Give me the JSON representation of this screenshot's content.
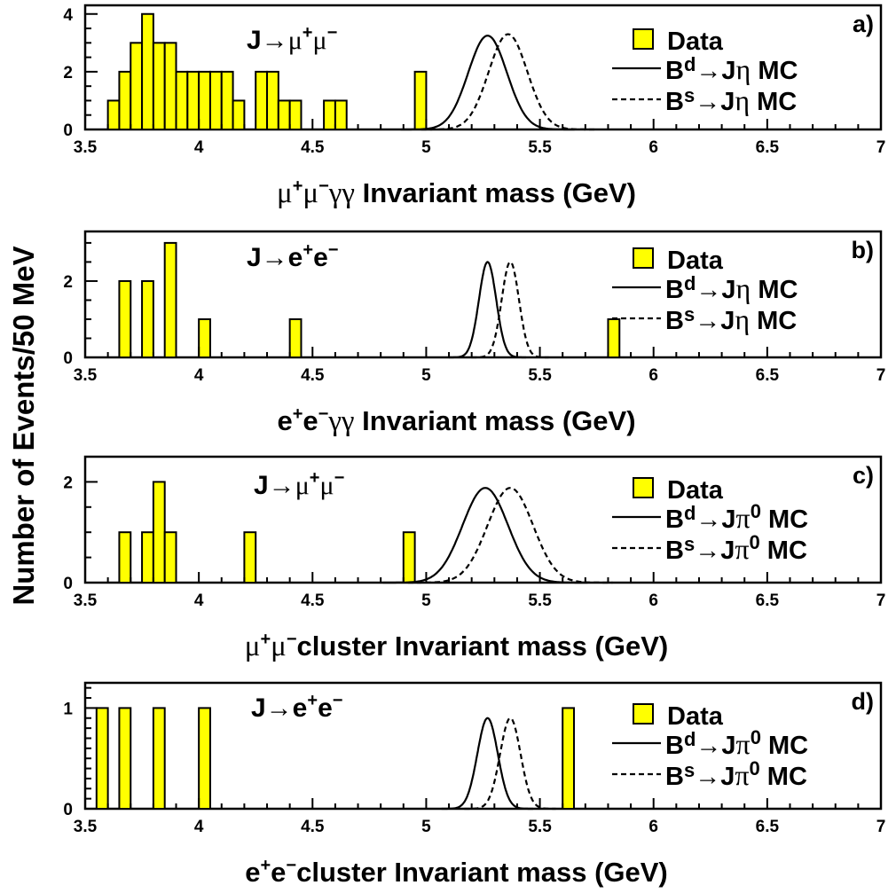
{
  "figure": {
    "ylabel": "Number of Events/50 MeV"
  },
  "chart_data": [
    {
      "type": "bar",
      "panel": "a)",
      "xlabel": "μ⁺μ⁻γγ Invariant mass (GeV)",
      "xlim": [
        3.5,
        7
      ],
      "ylim": [
        0,
        4.3
      ],
      "xticks": [
        "3.5",
        "4",
        "4.5",
        "5",
        "5.5",
        "6",
        "6.5",
        "7"
      ],
      "yticks": [
        "0",
        "2",
        "4"
      ],
      "channel_label": "J→μ⁺μ⁻",
      "bin_width": 0.05,
      "series": [
        {
          "name": "Data",
          "x": [
            3.6,
            3.65,
            3.7,
            3.75,
            3.8,
            3.85,
            3.9,
            3.95,
            4.0,
            4.05,
            4.1,
            4.15,
            4.25,
            4.3,
            4.35,
            4.4,
            4.55,
            4.6,
            4.95
          ],
          "values": [
            1,
            2,
            3,
            4,
            3,
            3,
            2,
            2,
            2,
            2,
            2,
            1,
            2,
            2,
            1,
            1,
            1,
            1,
            2
          ],
          "color": "#ffff00"
        },
        {
          "name": "B_d→Jη MC",
          "type": "gaussian",
          "mean": 5.27,
          "sigma": 0.085,
          "peak": 3.25
        },
        {
          "name": "B_s→Jη MC",
          "type": "gaussian",
          "mean": 5.36,
          "sigma": 0.085,
          "peak": 3.3
        }
      ],
      "legend": [
        "Data",
        "Bd→Jη MC",
        "Bs→Jη MC"
      ],
      "legend_position": "top-right"
    },
    {
      "type": "bar",
      "panel": "b)",
      "xlabel": "e⁺e⁻γγ Invariant mass (GeV)",
      "xlim": [
        3.5,
        7
      ],
      "ylim": [
        0,
        3.3
      ],
      "xticks": [
        "3.5",
        "4",
        "4.5",
        "5",
        "5.5",
        "6",
        "6.5",
        "7"
      ],
      "yticks": [
        "0",
        "2"
      ],
      "channel_label": "J→e⁺e⁻",
      "bin_width": 0.05,
      "series": [
        {
          "name": "Data",
          "x": [
            3.65,
            3.75,
            3.85,
            4.0,
            4.4,
            5.8
          ],
          "values": [
            2,
            2,
            3,
            1,
            1,
            1
          ],
          "color": "#ffff00"
        },
        {
          "name": "B_d→Jη MC",
          "type": "gaussian",
          "mean": 5.27,
          "sigma": 0.038,
          "peak": 2.5
        },
        {
          "name": "B_s→Jη MC",
          "type": "gaussian",
          "mean": 5.37,
          "sigma": 0.038,
          "peak": 2.5
        }
      ],
      "legend": [
        "Data",
        "Bd→Jη MC",
        "Bs→Jη MC"
      ],
      "legend_position": "top-right"
    },
    {
      "type": "bar",
      "panel": "c)",
      "xlabel": "μ⁺μ⁻cluster Invariant mass (GeV)",
      "xlim": [
        3.5,
        7
      ],
      "ylim": [
        0,
        2.5
      ],
      "xticks": [
        "3.5",
        "4",
        "4.5",
        "5",
        "5.5",
        "6",
        "6.5",
        "7"
      ],
      "yticks": [
        "0",
        "2"
      ],
      "channel_label": "J→μ⁺μ⁻",
      "bin_width": 0.05,
      "series": [
        {
          "name": "Data",
          "x": [
            3.65,
            3.75,
            3.8,
            3.85,
            4.2,
            4.9
          ],
          "values": [
            1,
            1,
            2,
            1,
            1,
            1
          ],
          "color": "#ffff00"
        },
        {
          "name": "B_d→Jπ⁰ MC",
          "type": "gaussian",
          "mean": 5.26,
          "sigma": 0.1,
          "peak": 1.88
        },
        {
          "name": "B_s→Jπ⁰ MC",
          "type": "gaussian",
          "mean": 5.37,
          "sigma": 0.1,
          "peak": 1.88
        }
      ],
      "legend": [
        "Data",
        "Bd→Jπ0 MC",
        "Bs→Jπ0 MC"
      ],
      "legend_position": "top-right"
    },
    {
      "type": "bar",
      "panel": "d)",
      "xlabel": "e⁺e⁻cluster Invariant mass (GeV)",
      "xlim": [
        3.5,
        7
      ],
      "ylim": [
        0,
        1.25
      ],
      "xticks": [
        "3.5",
        "4",
        "4.5",
        "5",
        "5.5",
        "6",
        "6.5",
        "7"
      ],
      "yticks": [
        "0",
        "1"
      ],
      "channel_label": "J→e⁺e⁻",
      "bin_width": 0.05,
      "series": [
        {
          "name": "Data",
          "x": [
            3.55,
            3.65,
            3.8,
            4.0,
            5.6
          ],
          "values": [
            1,
            1,
            1,
            1,
            1
          ],
          "color": "#ffff00"
        },
        {
          "name": "B_d→Jπ⁰ MC",
          "type": "gaussian",
          "mean": 5.27,
          "sigma": 0.045,
          "peak": 0.9
        },
        {
          "name": "B_s→Jπ⁰ MC",
          "type": "gaussian",
          "mean": 5.37,
          "sigma": 0.045,
          "peak": 0.9
        }
      ],
      "legend": [
        "Data",
        "Bd→Jπ0 MC",
        "Bs→Jπ0 MC"
      ],
      "legend_position": "top-right"
    }
  ]
}
